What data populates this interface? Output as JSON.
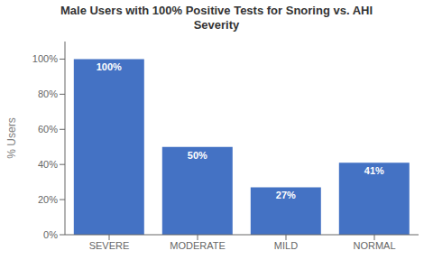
{
  "chart_data": {
    "type": "bar",
    "title": "Male Users with 100% Positive Tests for Snoring vs. AHI\nSeverity",
    "categories": [
      "SEVERE",
      "MODERATE",
      "MILD",
      "NORMAL"
    ],
    "values": [
      100,
      50,
      27,
      41
    ],
    "value_labels": [
      "100%",
      "50%",
      "27%",
      "41%"
    ],
    "color": "#4472C4",
    "ylabel": "% Users",
    "ylim": [
      0,
      110
    ],
    "yticks": [
      {
        "value": 0,
        "label": "0%"
      },
      {
        "value": 20,
        "label": "20%"
      },
      {
        "value": 40,
        "label": "40%"
      },
      {
        "value": 60,
        "label": "60%"
      },
      {
        "value": 80,
        "label": "80%"
      },
      {
        "value": 100,
        "label": "100%"
      }
    ],
    "data_labels": true,
    "grid": false
  }
}
